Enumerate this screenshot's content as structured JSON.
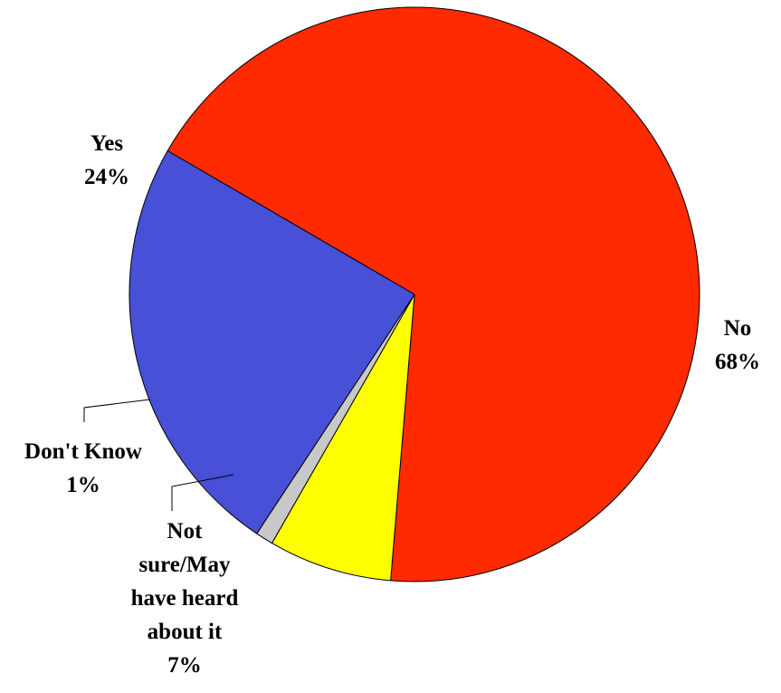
{
  "chart_data": {
    "type": "pie",
    "title": "",
    "slices": [
      {
        "label_lines": [
          "No"
        ],
        "percent_label": "68%",
        "value": 68,
        "color": "#ff2a00"
      },
      {
        "label_lines": [
          "Not",
          "sure/May",
          "have heard",
          "about it"
        ],
        "percent_label": "7%",
        "value": 7,
        "color": "#ffff00"
      },
      {
        "label_lines": [
          "Don't Know"
        ],
        "percent_label": "1%",
        "value": 1,
        "color": "#c8c8c8"
      },
      {
        "label_lines": [
          "Yes"
        ],
        "percent_label": "24%",
        "value": 24,
        "color": "#4750d6"
      }
    ],
    "legend": "none"
  }
}
